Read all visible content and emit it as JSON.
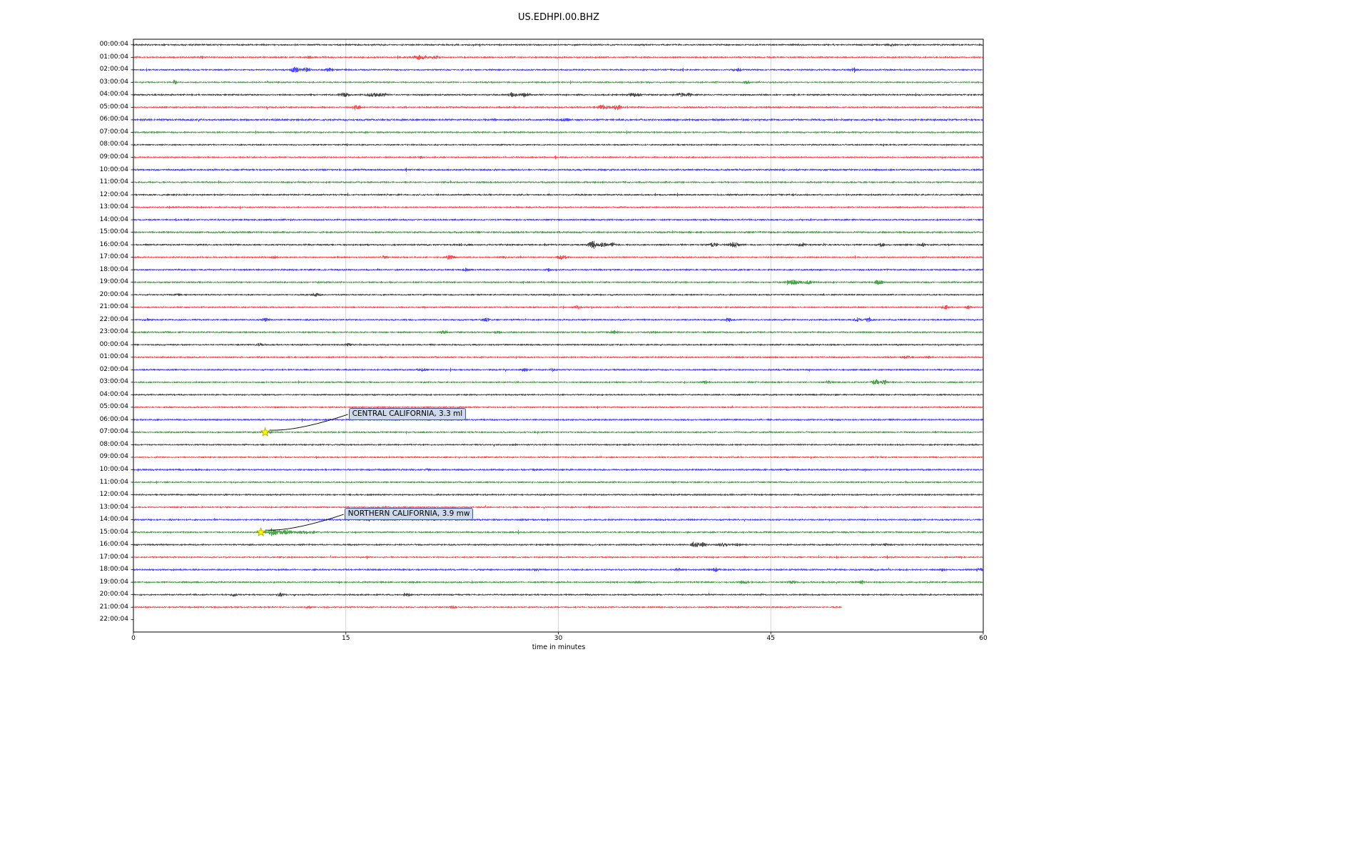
{
  "title": "US.EDHPI.00.BHZ",
  "chart_data": {
    "type": "line",
    "subtype": "seismogram-dayplot",
    "title": "US.EDHPI.00.BHZ",
    "xlabel": "time in minutes",
    "x_ticks": [
      "0",
      "15",
      "30",
      "45",
      "60"
    ],
    "x_range_minutes": [
      0,
      60
    ],
    "grid_minutes": [
      15,
      30,
      45
    ],
    "grid_color": "#c8c8c8",
    "color_cycle": [
      "#000000",
      "#ff0000",
      "#0000ff",
      "#008000"
    ],
    "rows": [
      {
        "label": "00:00:04",
        "color": "#000000",
        "base": 1.0,
        "bursts": [
          [
            53.5,
            0.6,
            1.2
          ]
        ]
      },
      {
        "label": "01:00:04",
        "color": "#ff0000",
        "base": 1.0,
        "bursts": [
          [
            4.8,
            0.3,
            1.5
          ],
          [
            12.4,
            0.3,
            1.5
          ],
          [
            20.2,
            0.8,
            3.2
          ],
          [
            21.3,
            0.4,
            1.8
          ]
        ]
      },
      {
        "label": "02:00:04",
        "color": "#0000ff",
        "base": 1.0,
        "bursts": [
          [
            11.4,
            0.5,
            3.8
          ],
          [
            12.2,
            0.4,
            2.8
          ],
          [
            13.8,
            0.5,
            2.4
          ],
          [
            42.6,
            0.5,
            1.8
          ],
          [
            50.8,
            0.4,
            1.4
          ]
        ]
      },
      {
        "label": "03:00:04",
        "color": "#008000",
        "base": 0.9,
        "bursts": [
          [
            2.9,
            0.15,
            4.5
          ],
          [
            43.3,
            0.4,
            1.8
          ]
        ]
      },
      {
        "label": "04:00:04",
        "color": "#000000",
        "base": 1.0,
        "bursts": [
          [
            14.9,
            0.5,
            2.8
          ],
          [
            16.9,
            0.6,
            3.2
          ],
          [
            17.6,
            0.4,
            2.4
          ],
          [
            26.7,
            0.5,
            2.8
          ],
          [
            27.6,
            0.5,
            2.8
          ],
          [
            35.4,
            0.6,
            2.8
          ],
          [
            38.6,
            0.4,
            2.4
          ],
          [
            39.2,
            0.3,
            2.0
          ]
        ]
      },
      {
        "label": "05:00:04",
        "color": "#ff0000",
        "base": 1.0,
        "bursts": [
          [
            15.7,
            0.4,
            3.8
          ],
          [
            33.1,
            0.6,
            3.2
          ],
          [
            34.1,
            0.5,
            3.4
          ]
        ]
      },
      {
        "label": "06:00:04",
        "color": "#0000ff",
        "base": 1.2,
        "bursts": [
          [
            30.5,
            0.4,
            1.4
          ]
        ]
      },
      {
        "label": "07:00:04",
        "color": "#008000",
        "base": 1.0,
        "bursts": []
      },
      {
        "label": "08:00:04",
        "color": "#000000",
        "base": 0.9,
        "bursts": []
      },
      {
        "label": "09:00:04",
        "color": "#ff0000",
        "base": 0.9,
        "bursts": [
          [
            20.3,
            0.2,
            1.6
          ]
        ]
      },
      {
        "label": "10:00:04",
        "color": "#0000ff",
        "base": 1.1,
        "bursts": []
      },
      {
        "label": "11:00:04",
        "color": "#008000",
        "base": 1.0,
        "bursts": []
      },
      {
        "label": "12:00:04",
        "color": "#000000",
        "base": 1.0,
        "bursts": []
      },
      {
        "label": "13:00:04",
        "color": "#ff0000",
        "base": 0.9,
        "bursts": []
      },
      {
        "label": "14:00:04",
        "color": "#0000ff",
        "base": 1.0,
        "bursts": []
      },
      {
        "label": "15:00:04",
        "color": "#008000",
        "base": 1.1,
        "bursts": []
      },
      {
        "label": "16:00:04",
        "color": "#000000",
        "base": 1.0,
        "bursts": [
          [
            32.4,
            0.5,
            5.5
          ],
          [
            33.1,
            0.4,
            3.8
          ],
          [
            33.8,
            0.3,
            2.8
          ],
          [
            40.9,
            0.5,
            2.8
          ],
          [
            42.4,
            0.5,
            3.8
          ],
          [
            47.2,
            0.4,
            2.2
          ],
          [
            52.8,
            0.3,
            2.2
          ],
          [
            55.7,
            0.3,
            1.8
          ]
        ]
      },
      {
        "label": "17:00:04",
        "color": "#ff0000",
        "base": 0.9,
        "bursts": [
          [
            9.9,
            0.3,
            1.8
          ],
          [
            17.7,
            0.3,
            1.8
          ],
          [
            22.3,
            0.5,
            2.8
          ],
          [
            26.1,
            0.3,
            1.6
          ],
          [
            30.2,
            0.5,
            2.8
          ]
        ]
      },
      {
        "label": "18:00:04",
        "color": "#0000ff",
        "base": 1.0,
        "bursts": [
          [
            23.5,
            0.4,
            1.8
          ],
          [
            29.3,
            0.3,
            1.6
          ]
        ]
      },
      {
        "label": "19:00:04",
        "color": "#008000",
        "base": 1.0,
        "bursts": [
          [
            46.6,
            0.6,
            2.8
          ],
          [
            47.6,
            0.5,
            2.2
          ],
          [
            52.6,
            0.5,
            3.2
          ]
        ]
      },
      {
        "label": "20:00:04",
        "color": "#000000",
        "base": 0.9,
        "bursts": [
          [
            3.1,
            0.3,
            1.4
          ],
          [
            12.9,
            0.4,
            3.2
          ]
        ]
      },
      {
        "label": "21:00:04",
        "color": "#ff0000",
        "base": 0.9,
        "bursts": [
          [
            31.3,
            0.4,
            2.2
          ],
          [
            57.3,
            0.4,
            2.8
          ],
          [
            58.9,
            0.3,
            2.0
          ]
        ]
      },
      {
        "label": "22:00:04",
        "color": "#0000ff",
        "base": 1.0,
        "bursts": [
          [
            0.9,
            0.3,
            2.0
          ],
          [
            9.3,
            0.4,
            2.2
          ],
          [
            24.9,
            0.4,
            2.6
          ],
          [
            42.0,
            0.4,
            2.2
          ],
          [
            51.1,
            0.4,
            2.6
          ],
          [
            51.9,
            0.4,
            2.8
          ]
        ]
      },
      {
        "label": "23:00:04",
        "color": "#008000",
        "base": 1.0,
        "bursts": [
          [
            21.9,
            0.5,
            1.6
          ],
          [
            25.6,
            0.4,
            1.4
          ],
          [
            33.9,
            0.5,
            2.0
          ],
          [
            36.6,
            0.4,
            1.4
          ]
        ]
      },
      {
        "label": "00:00:04",
        "color": "#000000",
        "base": 0.95,
        "bursts": [
          [
            8.9,
            0.4,
            1.6
          ],
          [
            15.1,
            0.4,
            1.4
          ]
        ]
      },
      {
        "label": "01:00:04",
        "color": "#ff0000",
        "base": 0.95,
        "bursts": [
          [
            54.6,
            0.4,
            1.6
          ],
          [
            56.1,
            0.3,
            1.4
          ]
        ]
      },
      {
        "label": "02:00:04",
        "color": "#0000ff",
        "base": 1.0,
        "bursts": [
          [
            20.4,
            0.4,
            2.2
          ],
          [
            27.6,
            0.4,
            2.0
          ],
          [
            29.6,
            0.3,
            1.6
          ]
        ]
      },
      {
        "label": "03:00:04",
        "color": "#008000",
        "base": 0.95,
        "bursts": [
          [
            40.4,
            0.4,
            1.6
          ],
          [
            49.1,
            0.4,
            1.6
          ],
          [
            52.4,
            0.4,
            3.2
          ],
          [
            53.0,
            0.3,
            2.6
          ]
        ]
      },
      {
        "label": "04:00:04",
        "color": "#000000",
        "base": 0.95,
        "bursts": []
      },
      {
        "label": "05:00:04",
        "color": "#ff0000",
        "base": 0.9,
        "bursts": []
      },
      {
        "label": "06:00:04",
        "color": "#0000ff",
        "base": 1.0,
        "bursts": []
      },
      {
        "label": "07:00:04",
        "color": "#008000",
        "base": 0.95,
        "bursts": [
          [
            9.6,
            0.3,
            1.1
          ]
        ]
      },
      {
        "label": "08:00:04",
        "color": "#000000",
        "base": 0.9,
        "bursts": []
      },
      {
        "label": "09:00:04",
        "color": "#ff0000",
        "base": 0.9,
        "bursts": []
      },
      {
        "label": "10:00:04",
        "color": "#0000ff",
        "base": 1.05,
        "bursts": [
          [
            20.8,
            0.3,
            1.4
          ],
          [
            28.3,
            0.3,
            1.2
          ]
        ]
      },
      {
        "label": "11:00:04",
        "color": "#008000",
        "base": 0.95,
        "bursts": []
      },
      {
        "label": "12:00:04",
        "color": "#000000",
        "base": 0.95,
        "bursts": []
      },
      {
        "label": "13:00:04",
        "color": "#ff0000",
        "base": 0.9,
        "bursts": []
      },
      {
        "label": "14:00:04",
        "color": "#0000ff",
        "base": 1.0,
        "bursts": []
      },
      {
        "label": "15:00:04",
        "color": "#008000",
        "base": 1.0,
        "bursts": [
          [
            9.8,
            0.5,
            5.2
          ],
          [
            10.7,
            0.8,
            2.8
          ],
          [
            12.2,
            1.2,
            1.2
          ]
        ]
      },
      {
        "label": "16:00:04",
        "color": "#000000",
        "base": 0.95,
        "bursts": [
          [
            39.6,
            0.4,
            3.8
          ],
          [
            40.2,
            0.4,
            2.8
          ],
          [
            41.6,
            0.5,
            2.6
          ],
          [
            42.6,
            0.4,
            2.0
          ],
          [
            53.1,
            0.3,
            1.6
          ]
        ]
      },
      {
        "label": "17:00:04",
        "color": "#ff0000",
        "base": 0.9,
        "bursts": []
      },
      {
        "label": "18:00:04",
        "color": "#0000ff",
        "base": 1.05,
        "bursts": [
          [
            28.4,
            0.3,
            1.6
          ],
          [
            38.4,
            0.3,
            1.6
          ],
          [
            41.1,
            0.4,
            2.0
          ],
          [
            57.1,
            0.3,
            1.6
          ],
          [
            59.7,
            0.3,
            2.0
          ]
        ]
      },
      {
        "label": "19:00:04",
        "color": "#008000",
        "base": 1.0,
        "bursts": [
          [
            35.6,
            0.4,
            1.4
          ],
          [
            43.1,
            0.4,
            2.0
          ],
          [
            46.5,
            0.4,
            1.6
          ],
          [
            51.4,
            0.4,
            1.8
          ]
        ]
      },
      {
        "label": "20:00:04",
        "color": "#000000",
        "base": 0.95,
        "bursts": [
          [
            7.1,
            0.4,
            2.0
          ],
          [
            10.3,
            0.4,
            2.2
          ],
          [
            19.3,
            0.4,
            2.0
          ]
        ]
      },
      {
        "label": "21:00:04",
        "color": "#ff0000",
        "base": 0.95,
        "end": 50,
        "bursts": [
          [
            12.3,
            0.3,
            1.6
          ],
          [
            22.5,
            0.4,
            2.0
          ]
        ]
      },
      {
        "label": "22:00:04",
        "color": "#0000ff",
        "base": 0,
        "end": 0,
        "bursts": []
      }
    ],
    "annotations": [
      {
        "label": "CENTRAL CALIFORNIA, 3.3 ml",
        "row_index": 31,
        "minute": 9.3,
        "marker": "star",
        "marker_color": "#ffff00"
      },
      {
        "label": "NORTHERN CALIFORNIA, 3.9 mw",
        "row_index": 39,
        "minute": 9.0,
        "marker": "star",
        "marker_color": "#ffff00"
      }
    ]
  }
}
